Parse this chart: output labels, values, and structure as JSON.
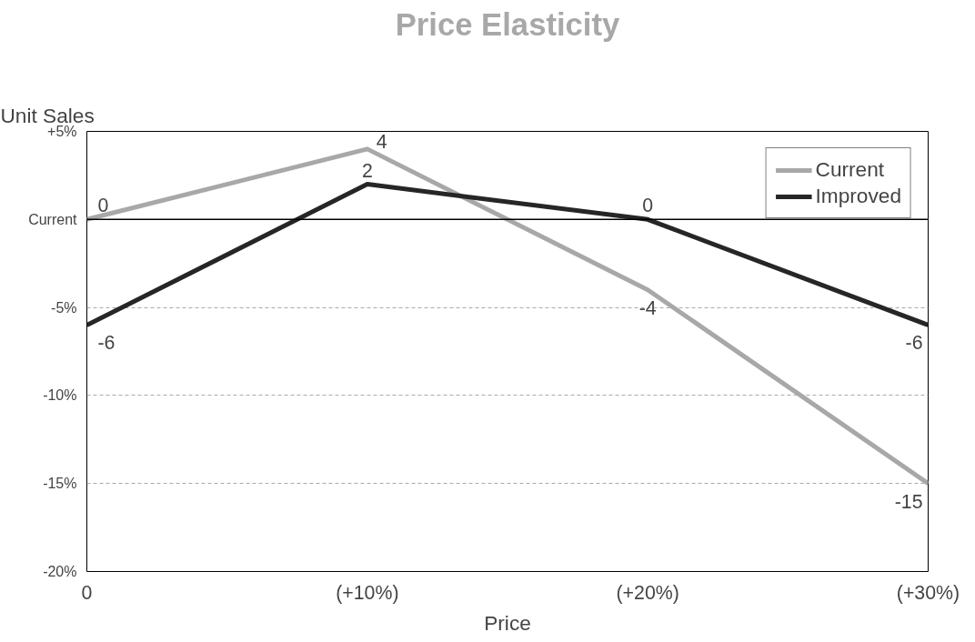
{
  "chart_data": {
    "type": "line",
    "title": "Price Elasticity",
    "xlabel": "Price",
    "ylabel": "Unit Sales",
    "categories": [
      "0",
      "(+10%)",
      "(+20%)",
      "(+30%)"
    ],
    "series": [
      {
        "name": "Current",
        "color": "#a8a8a8",
        "values": [
          0,
          4,
          -4,
          -15
        ]
      },
      {
        "name": "Improved",
        "color": "#262626",
        "values": [
          -6,
          2,
          0,
          -6
        ]
      }
    ],
    "ylim": [
      -20,
      5
    ],
    "yticks": [
      {
        "value": 5,
        "label": "+5%"
      },
      {
        "value": 0,
        "label": "Current"
      },
      {
        "value": -5,
        "label": "-5%"
      },
      {
        "value": -10,
        "label": "-10%"
      },
      {
        "value": -15,
        "label": "-15%"
      },
      {
        "value": -20,
        "label": "-20%"
      }
    ],
    "grid": "y",
    "legend": "top right",
    "data_labels": true,
    "line_style": "solid",
    "ref_lines": [
      {
        "axis": "y",
        "value": 0,
        "color": "#000000"
      }
    ]
  }
}
